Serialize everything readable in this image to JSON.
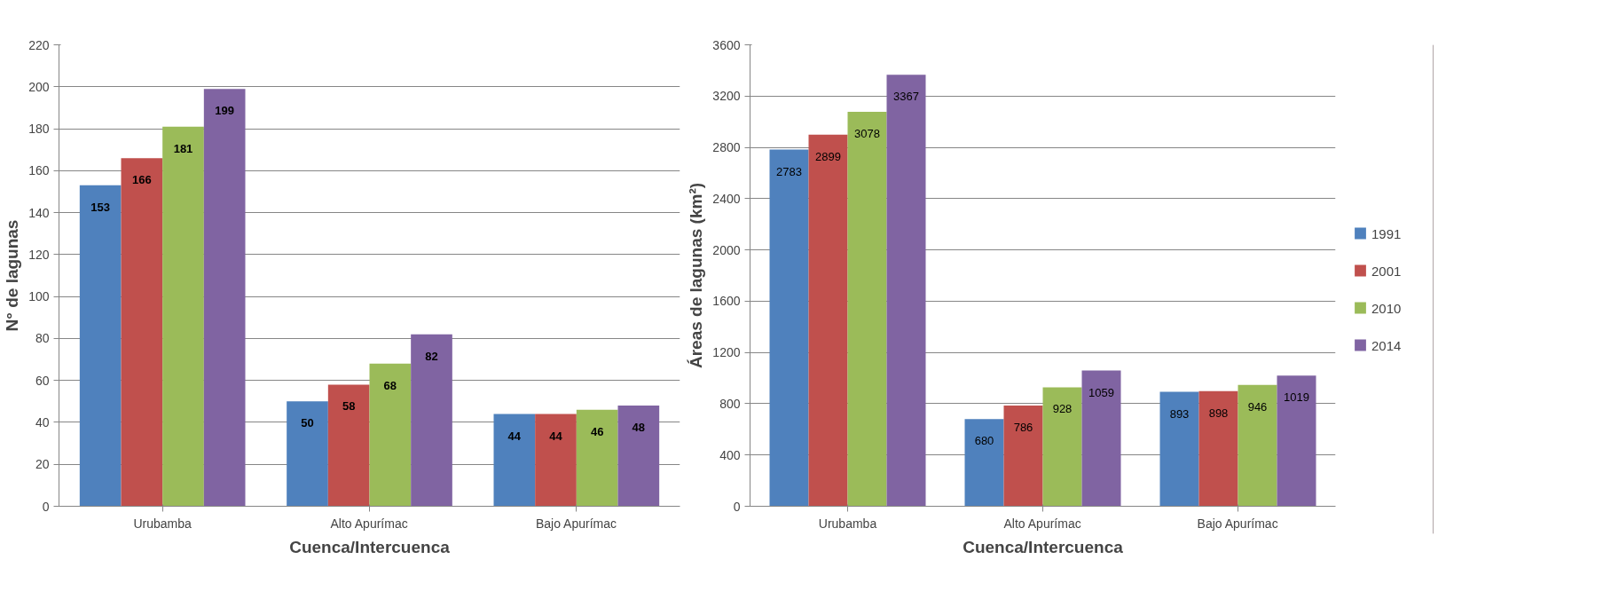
{
  "chart_data": [
    {
      "type": "bar",
      "xlabel": "Cuenca/Intercuenca",
      "ylabel": "N° de lagunas",
      "categories": [
        "Urubamba",
        "Alto Apurímac",
        "Bajo Apurímac"
      ],
      "series": [
        {
          "color": "#4f81bd",
          "values": [
            153,
            50,
            44
          ]
        },
        {
          "color": "#c0504d",
          "values": [
            166,
            58,
            44
          ]
        },
        {
          "color": "#9bbb59",
          "values": [
            181,
            68,
            46
          ]
        },
        {
          "color": "#8064a2",
          "values": [
            199,
            82,
            48
          ]
        }
      ],
      "ylim": [
        0,
        220
      ],
      "yticks": [
        0,
        20,
        40,
        60,
        80,
        100,
        120,
        140,
        160,
        180,
        200,
        220
      ],
      "grid": "y",
      "data_labels": true
    },
    {
      "type": "bar",
      "xlabel": "Cuenca/Intercuenca",
      "ylabel": "Áreas de lagunas (km²)",
      "categories": [
        "Urubamba",
        "Alto Apurímac",
        "Bajo Apurímac"
      ],
      "series": [
        {
          "name": "1991",
          "color": "#4f81bd",
          "values": [
            2783,
            680,
            893
          ]
        },
        {
          "name": "2001",
          "color": "#c0504d",
          "values": [
            2899,
            786,
            898
          ]
        },
        {
          "name": "2010",
          "color": "#9bbb59",
          "values": [
            3078,
            928,
            946
          ]
        },
        {
          "name": "2014",
          "color": "#8064a2",
          "values": [
            3367,
            1059,
            1019
          ]
        }
      ],
      "ylim": [
        0,
        3600
      ],
      "yticks": [
        0,
        400,
        800,
        1200,
        1600,
        2000,
        2400,
        2800,
        3200,
        3600
      ],
      "grid": "y",
      "data_labels": true,
      "legend": "right"
    }
  ]
}
